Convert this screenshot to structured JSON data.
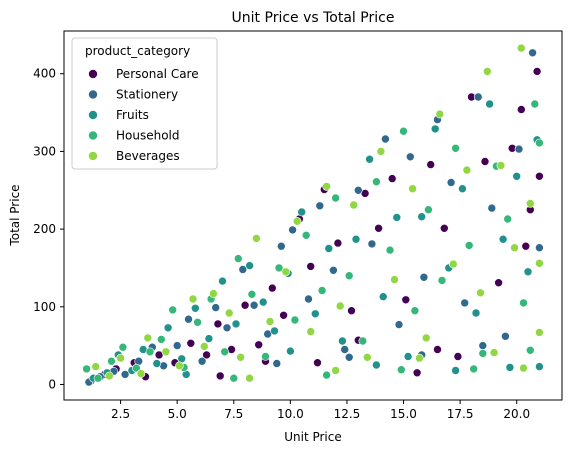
{
  "chart_data": {
    "type": "scatter",
    "title": "Unit Price vs Total Price",
    "xlabel": "Unit Price",
    "ylabel": "Total Price",
    "xlim": [
      0.0,
      22.0
    ],
    "ylim": [
      -20,
      455
    ],
    "xticks": [
      2.5,
      5.0,
      7.5,
      10.0,
      12.5,
      15.0,
      17.5,
      20.0
    ],
    "xtick_labels": [
      "2.5",
      "5.0",
      "7.5",
      "10.0",
      "12.5",
      "15.0",
      "17.5",
      "20.0"
    ],
    "yticks": [
      0,
      100,
      200,
      300,
      400
    ],
    "ytick_labels": [
      "0",
      "100",
      "200",
      "300",
      "400"
    ],
    "grid": false,
    "legend": {
      "title": "product_category",
      "placement": "upper left"
    },
    "series": [
      {
        "name": "Personal Care",
        "color": "#440154",
        "points": [
          [
            1.2,
            5
          ],
          [
            1.8,
            13
          ],
          [
            2.3,
            20
          ],
          [
            3.1,
            28
          ],
          [
            3.6,
            10
          ],
          [
            4.2,
            38
          ],
          [
            4.9,
            28
          ],
          [
            5.6,
            53
          ],
          [
            6.3,
            38
          ],
          [
            6.8,
            78
          ],
          [
            7.4,
            45
          ],
          [
            8.0,
            102
          ],
          [
            8.6,
            51
          ],
          [
            9.2,
            124
          ],
          [
            9.7,
            89
          ],
          [
            10.4,
            213
          ],
          [
            10.9,
            152
          ],
          [
            11.5,
            251
          ],
          [
            12.1,
            182
          ],
          [
            12.7,
            95
          ],
          [
            13.3,
            246
          ],
          [
            13.9,
            201
          ],
          [
            14.5,
            265
          ],
          [
            15.1,
            109
          ],
          [
            15.6,
            15
          ],
          [
            16.2,
            283
          ],
          [
            16.8,
            201
          ],
          [
            17.4,
            36
          ],
          [
            18.0,
            370
          ],
          [
            18.6,
            287
          ],
          [
            19.2,
            131
          ],
          [
            19.8,
            304
          ],
          [
            20.2,
            354
          ],
          [
            20.6,
            225
          ],
          [
            20.9,
            403
          ],
          [
            21.0,
            268
          ],
          [
            6.9,
            11
          ],
          [
            8.9,
            30
          ],
          [
            11.2,
            28
          ],
          [
            13.0,
            57
          ],
          [
            16.5,
            45
          ],
          [
            20.4,
            178
          ]
        ]
      },
      {
        "name": "Stationery",
        "color": "#31688e",
        "points": [
          [
            1.1,
            3
          ],
          [
            1.6,
            10
          ],
          [
            2.2,
            17
          ],
          [
            2.7,
            13
          ],
          [
            3.3,
            30
          ],
          [
            3.9,
            48
          ],
          [
            4.4,
            24
          ],
          [
            5.0,
            50
          ],
          [
            5.5,
            84
          ],
          [
            6.1,
            30
          ],
          [
            6.7,
            99
          ],
          [
            7.2,
            73
          ],
          [
            7.9,
            148
          ],
          [
            8.4,
            102
          ],
          [
            9.0,
            65
          ],
          [
            9.6,
            178
          ],
          [
            10.1,
            199
          ],
          [
            10.8,
            110
          ],
          [
            11.3,
            230
          ],
          [
            11.9,
            147
          ],
          [
            12.4,
            45
          ],
          [
            13.0,
            250
          ],
          [
            13.6,
            181
          ],
          [
            14.2,
            316
          ],
          [
            14.8,
            77
          ],
          [
            15.3,
            293
          ],
          [
            15.9,
            138
          ],
          [
            16.5,
            341
          ],
          [
            17.1,
            260
          ],
          [
            17.7,
            105
          ],
          [
            18.3,
            370
          ],
          [
            18.9,
            227
          ],
          [
            19.5,
            62
          ],
          [
            20.1,
            303
          ],
          [
            20.7,
            427
          ],
          [
            21.0,
            176
          ],
          [
            9.4,
            27
          ],
          [
            12.6,
            35
          ],
          [
            15.8,
            38
          ],
          [
            18.5,
            50
          ]
        ]
      },
      {
        "name": "Fruits",
        "color": "#21918c",
        "points": [
          [
            1.3,
            8
          ],
          [
            1.9,
            15
          ],
          [
            2.4,
            38
          ],
          [
            3.0,
            18
          ],
          [
            3.5,
            45
          ],
          [
            4.1,
            27
          ],
          [
            4.6,
            73
          ],
          [
            5.2,
            33
          ],
          [
            5.8,
            98
          ],
          [
            6.4,
            59
          ],
          [
            7.0,
            133
          ],
          [
            7.6,
            78
          ],
          [
            8.2,
            153
          ],
          [
            8.8,
            106
          ],
          [
            9.3,
            69
          ],
          [
            9.9,
            143
          ],
          [
            10.5,
            222
          ],
          [
            11.1,
            91
          ],
          [
            11.7,
            175
          ],
          [
            12.3,
            56
          ],
          [
            12.9,
            187
          ],
          [
            13.5,
            290
          ],
          [
            14.1,
            113
          ],
          [
            14.7,
            215
          ],
          [
            15.2,
            36
          ],
          [
            15.8,
            216
          ],
          [
            16.4,
            329
          ],
          [
            17.0,
            150
          ],
          [
            17.6,
            252
          ],
          [
            18.2,
            92
          ],
          [
            18.8,
            361
          ],
          [
            19.4,
            187
          ],
          [
            20.0,
            268
          ],
          [
            20.5,
            145
          ],
          [
            20.9,
            315
          ],
          [
            21.0,
            23
          ],
          [
            5.4,
            13
          ],
          [
            10.0,
            43
          ],
          [
            13.8,
            25
          ],
          [
            17.3,
            18
          ],
          [
            19.7,
            22
          ]
        ]
      },
      {
        "name": "Household",
        "color": "#35b779",
        "points": [
          [
            1.0,
            20
          ],
          [
            1.5,
            8
          ],
          [
            2.1,
            30
          ],
          [
            2.6,
            48
          ],
          [
            3.2,
            21
          ],
          [
            3.8,
            42
          ],
          [
            4.3,
            58
          ],
          [
            4.8,
            96
          ],
          [
            5.3,
            22
          ],
          [
            5.9,
            80
          ],
          [
            6.5,
            110
          ],
          [
            7.1,
            42
          ],
          [
            7.7,
            162
          ],
          [
            8.3,
            116
          ],
          [
            8.9,
            36
          ],
          [
            9.5,
            150
          ],
          [
            10.2,
            83
          ],
          [
            10.7,
            192
          ],
          [
            11.4,
            121
          ],
          [
            12.0,
            240
          ],
          [
            12.6,
            140
          ],
          [
            13.2,
            56
          ],
          [
            13.8,
            261
          ],
          [
            14.4,
            173
          ],
          [
            15.0,
            326
          ],
          [
            15.5,
            95
          ],
          [
            16.1,
            225
          ],
          [
            16.7,
            134
          ],
          [
            17.3,
            304
          ],
          [
            17.9,
            179
          ],
          [
            18.5,
            40
          ],
          [
            19.1,
            281
          ],
          [
            19.6,
            213
          ],
          [
            20.3,
            105
          ],
          [
            20.8,
            361
          ],
          [
            21.0,
            311
          ],
          [
            7.5,
            8
          ],
          [
            11.6,
            12
          ],
          [
            14.9,
            19
          ],
          [
            18.1,
            20
          ],
          [
            20.6,
            44
          ]
        ]
      },
      {
        "name": "Beverages",
        "color": "#90d743",
        "points": [
          [
            1.4,
            23
          ],
          [
            2.0,
            11
          ],
          [
            2.5,
            34
          ],
          [
            3.4,
            14
          ],
          [
            3.7,
            60
          ],
          [
            4.5,
            42
          ],
          [
            5.1,
            24
          ],
          [
            5.7,
            110
          ],
          [
            6.2,
            49
          ],
          [
            6.6,
            117
          ],
          [
            7.3,
            92
          ],
          [
            7.8,
            35
          ],
          [
            8.5,
            188
          ],
          [
            9.1,
            81
          ],
          [
            9.8,
            145
          ],
          [
            10.3,
            210
          ],
          [
            10.9,
            68
          ],
          [
            11.6,
            255
          ],
          [
            12.2,
            101
          ],
          [
            12.8,
            231
          ],
          [
            13.4,
            35
          ],
          [
            14.0,
            300
          ],
          [
            14.6,
            135
          ],
          [
            15.4,
            252
          ],
          [
            16.0,
            60
          ],
          [
            16.6,
            348
          ],
          [
            17.2,
            155
          ],
          [
            17.8,
            276
          ],
          [
            18.4,
            118
          ],
          [
            18.7,
            403
          ],
          [
            19.3,
            282
          ],
          [
            19.9,
            176
          ],
          [
            20.2,
            433
          ],
          [
            20.6,
            233
          ],
          [
            21.0,
            156
          ],
          [
            8.2,
            8
          ],
          [
            12.0,
            18
          ],
          [
            15.7,
            34
          ],
          [
            19.0,
            41
          ],
          [
            20.3,
            21
          ],
          [
            21.0,
            67
          ]
        ]
      }
    ]
  }
}
